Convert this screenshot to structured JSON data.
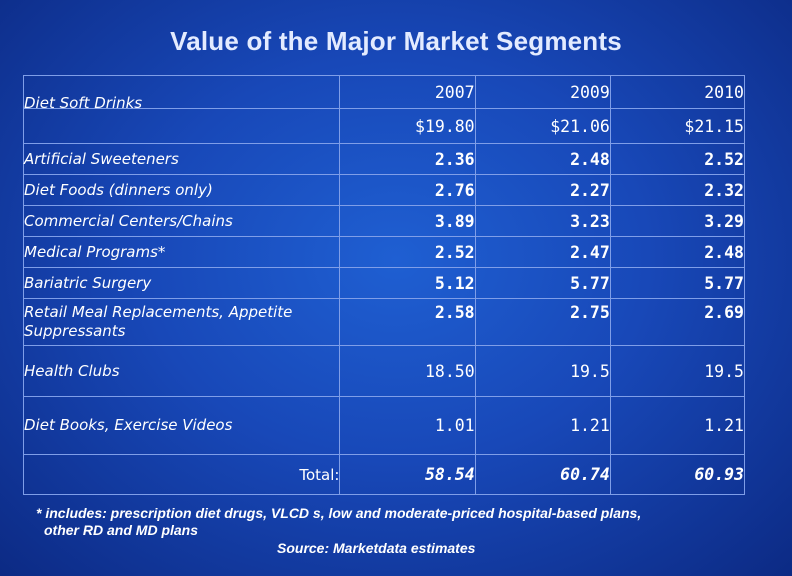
{
  "title": "Value of the Major Market Segments",
  "years": [
    "2007",
    "2009",
    "2010"
  ],
  "rows": [
    {
      "label": "Diet Soft Drinks",
      "values": [
        "$19.80",
        "$21.06",
        "$21.15"
      ]
    },
    {
      "label": "Artificial Sweeteners",
      "values": [
        "2.36",
        "2.48",
        "2.52"
      ]
    },
    {
      "label": "Diet Foods (dinners only)",
      "values": [
        "2.76",
        "2.27",
        "2.32"
      ]
    },
    {
      "label": "Commercial Centers/Chains",
      "values": [
        "3.89",
        "3.23",
        "3.29"
      ]
    },
    {
      "label": "Medical Programs*",
      "values": [
        "2.52",
        "2.47",
        "2.48"
      ]
    },
    {
      "label": "Bariatric Surgery",
      "values": [
        "5.12",
        "5.77",
        "5.77"
      ]
    },
    {
      "label": "Retail Meal Replacements, Appetite Suppressants",
      "values": [
        "2.58",
        "2.75",
        "2.69"
      ]
    },
    {
      "label": "Health Clubs",
      "values": [
        "18.50",
        "19.5",
        "19.5"
      ]
    },
    {
      "label": "Diet Books, Exercise Videos",
      "values": [
        "1.01",
        "1.21",
        "1.21"
      ]
    }
  ],
  "total": {
    "label": "Total:",
    "values": [
      "58.54",
      "60.74",
      "60.93"
    ]
  },
  "footnote": {
    "line1": "* includes: prescription diet drugs, VLCD s, low and moderate-priced hospital-based plans,",
    "line2": "other RD and MD plans"
  },
  "source": "Source: Marketdata estimates",
  "colors": {
    "background": "#1848b8",
    "grid": "#7f9ee8",
    "text": "#ffffff"
  }
}
